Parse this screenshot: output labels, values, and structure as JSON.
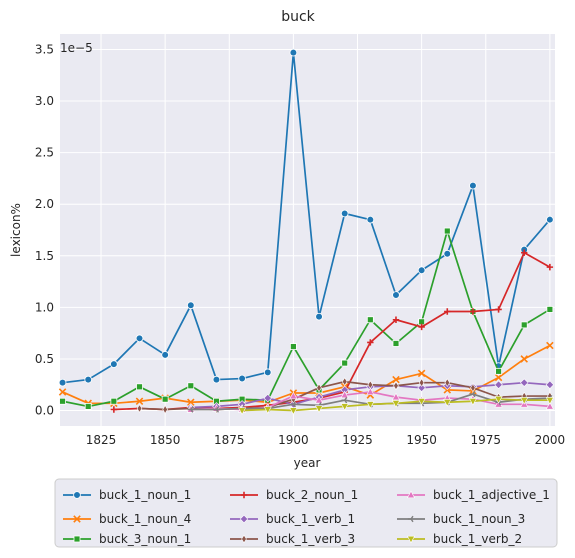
{
  "chart_data": {
    "type": "line",
    "title": "buck",
    "xlabel": "year",
    "ylabel": "lexicon%",
    "y_offset_label": "1e−5",
    "xlim": [
      1809,
      2002
    ],
    "ylim": [
      -0.15,
      3.65
    ],
    "x_ticks": [
      1825,
      1850,
      1875,
      1900,
      1925,
      1950,
      1975,
      2000
    ],
    "y_ticks": [
      0.0,
      0.5,
      1.0,
      1.5,
      2.0,
      2.5,
      3.0,
      3.5
    ],
    "y_tick_labels": [
      "0.0",
      "0.5",
      "1.0",
      "1.5",
      "2.0",
      "2.5",
      "3.0",
      "3.5"
    ],
    "grid": true,
    "legend_position": "bottom-center",
    "series": [
      {
        "name": "buck_1_noun_1",
        "color": "#1f77b4",
        "marker": "circle",
        "x": [
          1810,
          1820,
          1830,
          1840,
          1850,
          1860,
          1870,
          1880,
          1890,
          1900,
          1910,
          1920,
          1930,
          1940,
          1950,
          1960,
          1970,
          1980,
          1990,
          2000
        ],
        "y": [
          0.27,
          0.3,
          0.45,
          0.7,
          0.54,
          1.02,
          0.3,
          0.31,
          0.37,
          3.47,
          0.91,
          1.91,
          1.85,
          1.12,
          1.36,
          1.52,
          2.18,
          0.43,
          1.56,
          1.85
        ]
      },
      {
        "name": "buck_1_noun_4",
        "color": "#ff7f0e",
        "marker": "x",
        "x": [
          1810,
          1820,
          1830,
          1840,
          1850,
          1860,
          1870,
          1880,
          1890,
          1900,
          1910,
          1920,
          1930,
          1940,
          1950,
          1960,
          1970,
          1980,
          1990,
          2000
        ],
        "y": [
          0.18,
          0.07,
          0.07,
          0.09,
          0.12,
          0.08,
          0.09,
          0.1,
          0.08,
          0.17,
          0.17,
          0.23,
          0.15,
          0.3,
          0.36,
          0.2,
          0.19,
          0.32,
          0.5,
          0.63
        ]
      },
      {
        "name": "buck_3_noun_1",
        "color": "#2ca02c",
        "marker": "square",
        "x": [
          1810,
          1820,
          1830,
          1840,
          1850,
          1860,
          1870,
          1880,
          1890,
          1900,
          1910,
          1920,
          1930,
          1940,
          1950,
          1960,
          1970,
          1980,
          1990,
          2000
        ],
        "y": [
          0.09,
          0.04,
          0.09,
          0.23,
          0.11,
          0.24,
          0.09,
          0.11,
          0.1,
          0.62,
          0.2,
          0.46,
          0.88,
          0.65,
          0.86,
          1.74,
          0.96,
          0.38,
          0.83,
          0.98
        ]
      },
      {
        "name": "buck_2_noun_1",
        "color": "#d62728",
        "marker": "plus",
        "x": [
          1830,
          1840,
          1850,
          1860,
          1870,
          1880,
          1890,
          1900,
          1910,
          1920,
          1930,
          1940,
          1950,
          1960,
          1970,
          1980,
          1990,
          2000
        ],
        "y": [
          0.01,
          0.02,
          0.01,
          0.03,
          0.02,
          0.03,
          0.05,
          0.08,
          0.12,
          0.18,
          0.66,
          0.88,
          0.81,
          0.96,
          0.96,
          0.98,
          1.53,
          1.39
        ]
      },
      {
        "name": "buck_1_verb_1",
        "color": "#9467bd",
        "marker": "diamond",
        "x": [
          1860,
          1870,
          1880,
          1890,
          1900,
          1910,
          1920,
          1930,
          1940,
          1950,
          1960,
          1970,
          1980,
          1990,
          2000
        ],
        "y": [
          0.03,
          0.04,
          0.06,
          0.12,
          0.06,
          0.13,
          0.2,
          0.23,
          0.24,
          0.22,
          0.24,
          0.23,
          0.25,
          0.27,
          0.25
        ]
      },
      {
        "name": "buck_1_verb_3",
        "color": "#8c564b",
        "marker": "thin-diamond",
        "x": [
          1840,
          1850,
          1860,
          1870,
          1880,
          1890,
          1900,
          1910,
          1920,
          1930,
          1940,
          1950,
          1960,
          1970,
          1980,
          1990,
          2000
        ],
        "y": [
          0.02,
          0.01,
          0.02,
          0.01,
          0.02,
          0.03,
          0.11,
          0.22,
          0.28,
          0.25,
          0.24,
          0.27,
          0.27,
          0.22,
          0.13,
          0.14,
          0.14
        ]
      },
      {
        "name": "buck_1_adjective_1",
        "color": "#e377c2",
        "marker": "triangle-up",
        "x": [
          1860,
          1870,
          1880,
          1890,
          1900,
          1910,
          1920,
          1930,
          1940,
          1950,
          1960,
          1970,
          1980,
          1990,
          2000
        ],
        "y": [
          0.01,
          0.02,
          0.01,
          0.03,
          0.14,
          0.1,
          0.15,
          0.18,
          0.13,
          0.1,
          0.12,
          0.11,
          0.06,
          0.06,
          0.04
        ]
      },
      {
        "name": "buck_1_noun_3",
        "color": "#7f7f7f",
        "marker": "tri-left",
        "x": [
          1860,
          1870,
          1880,
          1890,
          1900,
          1910,
          1920,
          1930,
          1940,
          1950,
          1960,
          1970,
          1980,
          1990,
          2000
        ],
        "y": [
          0.01,
          0.01,
          0.02,
          0.02,
          0.06,
          0.05,
          0.1,
          0.06,
          0.07,
          0.07,
          0.08,
          0.16,
          0.08,
          0.11,
          0.12
        ]
      },
      {
        "name": "buck_1_verb_2",
        "color": "#bcbd22",
        "marker": "triangle-down",
        "x": [
          1880,
          1890,
          1900,
          1910,
          1920,
          1930,
          1940,
          1950,
          1960,
          1970,
          1980,
          1990,
          2000
        ],
        "y": [
          0.0,
          0.01,
          0.0,
          0.02,
          0.04,
          0.06,
          0.07,
          0.09,
          0.08,
          0.09,
          0.11,
          0.1,
          0.1
        ]
      }
    ]
  }
}
